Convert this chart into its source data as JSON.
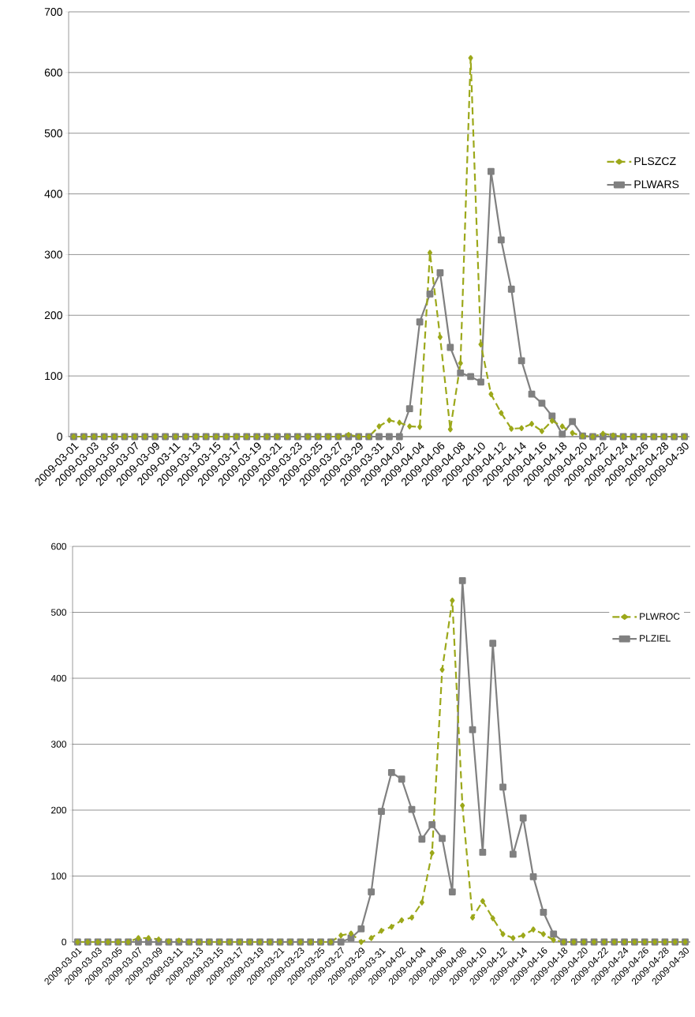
{
  "chart_data": [
    {
      "type": "line",
      "categories": [
        "2009-03-01",
        null,
        "2009-03-03",
        null,
        "2009-03-05",
        null,
        "2009-03-07",
        null,
        "2009-03-09",
        null,
        "2009-03-11",
        null,
        "2009-03-13",
        null,
        "2009-03-15",
        null,
        "2009-03-17",
        null,
        "2009-03-19",
        null,
        "2009-03-21",
        null,
        "2009-03-23",
        null,
        "2009-03-25",
        null,
        "2009-03-27",
        null,
        "2009-03-29",
        null,
        "2009-03-31",
        null,
        "2009-04-02",
        null,
        "2009-04-04",
        null,
        "2009-04-06",
        null,
        "2009-04-08",
        null,
        "2009-04-10",
        null,
        "2009-04-12",
        null,
        "2009-04-14",
        null,
        "2009-04-16",
        null,
        "2009-04-18",
        null,
        "2009-04-20",
        null,
        "2009-04-22",
        null,
        "2009-04-24",
        null,
        "2009-04-26",
        null,
        "2009-04-28",
        null,
        "2009-04-30"
      ],
      "series": [
        {
          "name": "PLSZCZ",
          "color": "#9ca81a",
          "line_style": "dashed",
          "marker": "diamond",
          "values": [
            0,
            0,
            0,
            0,
            0,
            0,
            0,
            0,
            0,
            0,
            0,
            0,
            0,
            0,
            0,
            0,
            0,
            0,
            0,
            0,
            0,
            0,
            0,
            0,
            0,
            0,
            0,
            3,
            0,
            0,
            17,
            27,
            23,
            17,
            16,
            303,
            164,
            12,
            121,
            624,
            152,
            70,
            39,
            13,
            14,
            21,
            9,
            26,
            17,
            6,
            1,
            0,
            5,
            2,
            0,
            0,
            0,
            0,
            0,
            0,
            0
          ]
        },
        {
          "name": "PLWARS",
          "color": "#808080",
          "line_style": "solid",
          "marker": "square",
          "values": [
            0,
            0,
            0,
            0,
            0,
            0,
            0,
            0,
            0,
            0,
            0,
            0,
            0,
            0,
            0,
            0,
            0,
            0,
            0,
            0,
            0,
            0,
            0,
            0,
            0,
            0,
            0,
            0,
            0,
            0,
            0,
            0,
            0,
            46,
            189,
            235,
            270,
            147,
            105,
            99,
            90,
            437,
            324,
            243,
            125,
            70,
            55,
            34,
            4,
            25,
            1,
            0,
            0,
            0,
            0,
            0,
            0,
            0,
            0,
            0,
            0
          ]
        }
      ],
      "ylim": [
        0,
        700
      ],
      "yticks": [
        0,
        100,
        200,
        300,
        400,
        500,
        600,
        700
      ],
      "grid": "y",
      "legend": "right"
    },
    {
      "type": "line",
      "categories": [
        "2009-03-01",
        null,
        "2009-03-03",
        null,
        "2009-03-05",
        null,
        "2009-03-07",
        null,
        "2009-03-09",
        null,
        "2009-03-11",
        null,
        "2009-03-13",
        null,
        "2009-03-15",
        null,
        "2009-03-17",
        null,
        "2009-03-19",
        null,
        "2009-03-21",
        null,
        "2009-03-23",
        null,
        "2009-03-25",
        null,
        "2009-03-27",
        null,
        "2009-03-29",
        null,
        "2009-03-31",
        null,
        "2009-04-02",
        null,
        "2009-04-04",
        null,
        "2009-04-06",
        null,
        "2009-04-08",
        null,
        "2009-04-10",
        null,
        "2009-04-12",
        null,
        "2009-04-14",
        null,
        "2009-04-16",
        null,
        "2009-04-18",
        null,
        "2009-04-20",
        null,
        "2009-04-22",
        null,
        "2009-04-24",
        null,
        "2009-04-26",
        null,
        "2009-04-28",
        null,
        "2009-04-30"
      ],
      "series": [
        {
          "name": "PLWROC",
          "color": "#9ca81a",
          "line_style": "dashed",
          "marker": "diamond",
          "values": [
            0,
            0,
            0,
            0,
            0,
            0,
            6,
            6,
            4,
            1,
            2,
            0,
            0,
            0,
            0,
            0,
            0,
            0,
            0,
            0,
            0,
            0,
            0,
            0,
            0,
            0,
            10,
            13,
            0,
            6,
            17,
            23,
            33,
            37,
            60,
            135,
            413,
            518,
            207,
            37,
            62,
            36,
            12,
            6,
            10,
            19,
            12,
            3,
            0,
            0,
            0,
            0,
            0,
            0,
            0,
            0,
            0,
            0,
            0,
            0,
            0
          ]
        },
        {
          "name": "PLZIEL",
          "color": "#808080",
          "line_style": "solid",
          "marker": "square",
          "values": [
            0,
            0,
            0,
            0,
            0,
            0,
            0,
            0,
            0,
            0,
            0,
            0,
            0,
            0,
            0,
            0,
            0,
            0,
            0,
            0,
            0,
            0,
            0,
            0,
            0,
            0,
            0,
            6,
            20,
            76,
            198,
            257,
            247,
            201,
            156,
            178,
            157,
            76,
            548,
            322,
            136,
            453,
            235,
            133,
            188,
            99,
            45,
            12,
            0,
            0,
            0,
            0,
            0,
            0,
            0,
            0,
            0,
            0,
            0,
            0,
            0
          ]
        }
      ],
      "ylim": [
        0,
        600
      ],
      "yticks": [
        0,
        100,
        200,
        300,
        400,
        500,
        600
      ],
      "grid": "y",
      "legend": "top right"
    }
  ]
}
